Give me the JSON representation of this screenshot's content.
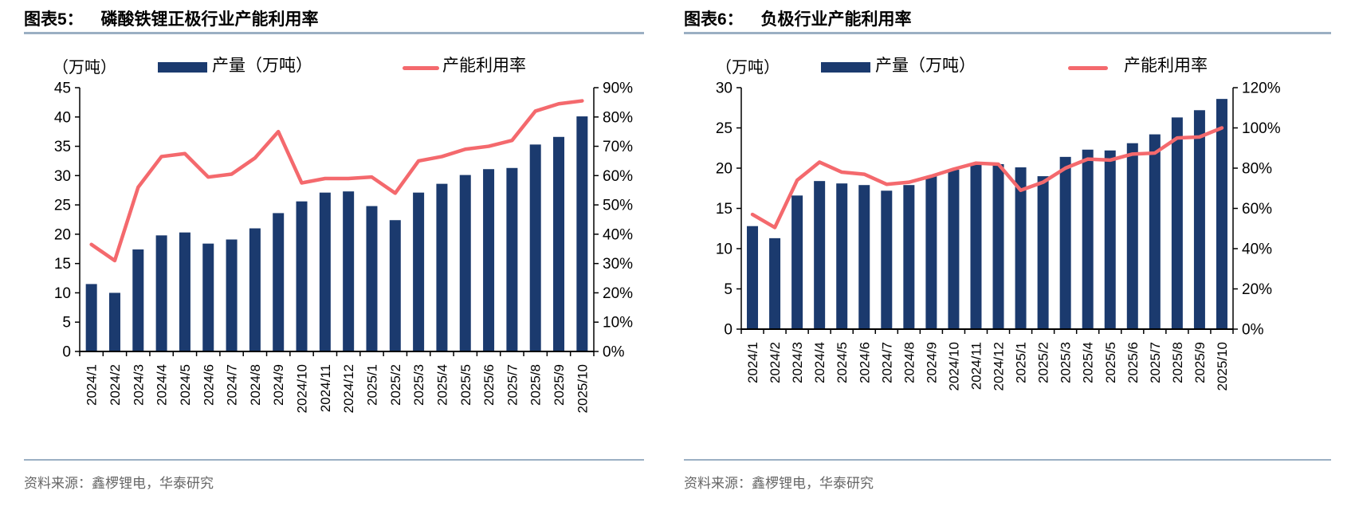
{
  "style": {
    "bar_color": "#1b3a6e",
    "line_color": "#f4696d",
    "axis_color": "#000000",
    "divider_color": "#9bafc3",
    "source_text_color": "#666666"
  },
  "source_note": "资料来源：鑫椤锂电，华泰研究",
  "chart_data": [
    {
      "type": "bar+line",
      "figure_label": "图表5：",
      "title": "磷酸铁锂正极行业产能利用率",
      "legend_position": "top",
      "grid": false,
      "categories": [
        "2024/1",
        "2024/2",
        "2024/3",
        "2024/4",
        "2024/5",
        "2024/6",
        "2024/7",
        "2024/8",
        "2024/9",
        "2024/10",
        "2024/11",
        "2024/12",
        "2025/1",
        "2025/2",
        "2025/3",
        "2025/4",
        "2025/5",
        "2025/6",
        "2025/7",
        "2025/8",
        "2025/9",
        "2025/10"
      ],
      "left_axis": {
        "label": "（万吨）",
        "min": 0,
        "max": 45,
        "step": 5
      },
      "right_axis": {
        "min": 0,
        "max": 90,
        "step": 10,
        "unit": "%"
      },
      "series": [
        {
          "name": "产量（万吨）",
          "type": "bar",
          "axis": "left",
          "values": [
            11.5,
            10.0,
            17.4,
            19.8,
            20.3,
            18.4,
            19.1,
            21.0,
            23.6,
            25.6,
            27.1,
            27.3,
            24.8,
            22.4,
            27.1,
            28.6,
            30.1,
            31.1,
            31.3,
            35.3,
            36.6,
            40.1
          ]
        },
        {
          "name": "产能利用率",
          "type": "line",
          "axis": "right",
          "unit": "%",
          "values": [
            36.5,
            31,
            56,
            66.5,
            67.5,
            59.5,
            60.5,
            66,
            75,
            57.5,
            59,
            59,
            59.5,
            54,
            65,
            66.5,
            69,
            70,
            72,
            82,
            84.5,
            85.5
          ]
        }
      ]
    },
    {
      "type": "bar+line",
      "figure_label": "图表6：",
      "title": "负极行业产能利用率",
      "legend_position": "top",
      "grid": false,
      "categories": [
        "2024/1",
        "2024/2",
        "2024/3",
        "2024/4",
        "2024/5",
        "2024/6",
        "2024/7",
        "2024/8",
        "2024/9",
        "2024/10",
        "2024/11",
        "2024/12",
        "2025/1",
        "2025/2",
        "2025/3",
        "2025/4",
        "2025/5",
        "2025/6",
        "2025/7",
        "2025/8",
        "2025/9",
        "2025/10"
      ],
      "left_axis": {
        "label": "（万吨）",
        "min": 0,
        "max": 30,
        "step": 5
      },
      "right_axis": {
        "min": 0,
        "max": 120,
        "step": 20,
        "unit": "%"
      },
      "series": [
        {
          "name": "产量（万吨）",
          "type": "bar",
          "axis": "left",
          "values": [
            12.8,
            11.3,
            16.6,
            18.4,
            18.1,
            17.9,
            17.2,
            17.9,
            19.0,
            19.8,
            20.5,
            20.5,
            20.1,
            19.0,
            21.4,
            22.3,
            22.2,
            23.1,
            24.2,
            26.3,
            27.2,
            28.6
          ]
        },
        {
          "name": "产能利用率",
          "type": "line",
          "axis": "right",
          "unit": "%",
          "values": [
            57,
            50.5,
            74,
            83,
            78,
            77,
            72,
            73,
            76,
            79.5,
            82.5,
            82,
            69,
            73,
            80,
            84.5,
            84,
            87,
            87.5,
            95,
            95.5,
            100
          ]
        }
      ]
    }
  ]
}
